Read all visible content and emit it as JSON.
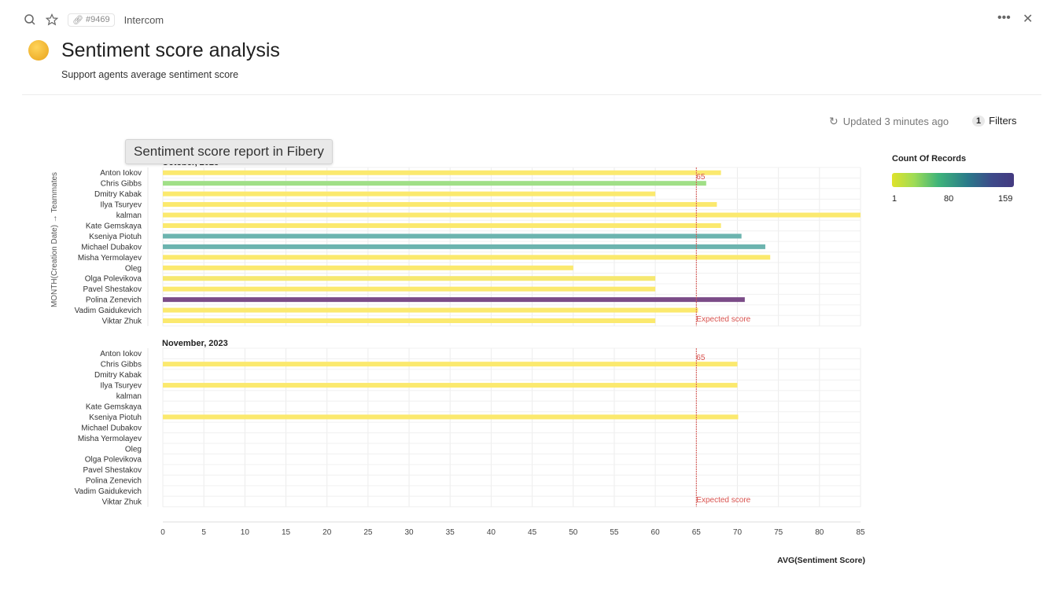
{
  "topbar": {
    "search_icon": "search-icon",
    "star_icon": "star-icon",
    "entity_id": "#9469",
    "database": "Intercom",
    "more_label": "•••",
    "close_label": "✕"
  },
  "page": {
    "title": "Sentiment score analysis",
    "subtitle": "Support agents average sentiment score",
    "emoji": "grimacing-sweat-emoji"
  },
  "toolbar": {
    "updated": "Updated 3 minutes ago",
    "filter_count": "1",
    "filters_label": "Filters"
  },
  "tooltip": "Sentiment score report in Fibery",
  "legend": {
    "title": "Count Of Records",
    "min": "1",
    "mid": "80",
    "max": "159"
  },
  "chart_data": {
    "type": "bar",
    "orientation": "horizontal",
    "ylabel": "MONTH(Creation Date) → Teammates",
    "xlabel": "AVG(Sentiment Score)",
    "xlim": [
      0,
      85
    ],
    "xticks": [
      0,
      5,
      10,
      15,
      20,
      25,
      30,
      35,
      40,
      45,
      50,
      55,
      60,
      65,
      70,
      75,
      80,
      85
    ],
    "grid": true,
    "categories": [
      "Anton Iokov",
      "Chris Gibbs",
      "Dmitry Kabak",
      "Ilya Tsuryev",
      "kalman",
      "Kate Gemskaya",
      "Kseniya Piotuh",
      "Michael Dubakov",
      "Misha Yermolayev",
      "Oleg",
      "Olga Polevikova",
      "Pavel Shestakov",
      "Polina Zenevich",
      "Vadim Gaidukevich",
      "Viktar Zhuk"
    ],
    "reference_line": {
      "value": 65,
      "value_label": "65",
      "label": "Expected score",
      "color": "#d9534f"
    },
    "color_scale": {
      "legend": "Count Of Records",
      "range": [
        1,
        159
      ],
      "colors": [
        "#dfe22a",
        "#9fdc55",
        "#3fb47a",
        "#2a7a8a",
        "#443a80"
      ]
    },
    "panels": [
      {
        "label": "October, 2023",
        "values": [
          68,
          66.2,
          60,
          67.5,
          85,
          68,
          70.5,
          73.4,
          74,
          50,
          60,
          60,
          70.9,
          65.2,
          60
        ],
        "colors": [
          "#fbe96e",
          "#a0df87",
          "#fbe96e",
          "#fbe96e",
          "#fbe96e",
          "#fbe96e",
          "#6cb4af",
          "#6cb4af",
          "#fbe96e",
          "#fbe96e",
          "#f6e870",
          "#fbe96e",
          "#7b4c88",
          "#fbe96e",
          "#fbe96e"
        ]
      },
      {
        "label": "November, 2023",
        "values": [
          null,
          70,
          null,
          70,
          null,
          null,
          70.1,
          null,
          null,
          null,
          null,
          null,
          null,
          null,
          null
        ],
        "colors": [
          null,
          "#fbe96e",
          null,
          "#fbe96e",
          null,
          null,
          "#fbe96e",
          null,
          null,
          null,
          null,
          null,
          null,
          null,
          null
        ]
      }
    ]
  }
}
